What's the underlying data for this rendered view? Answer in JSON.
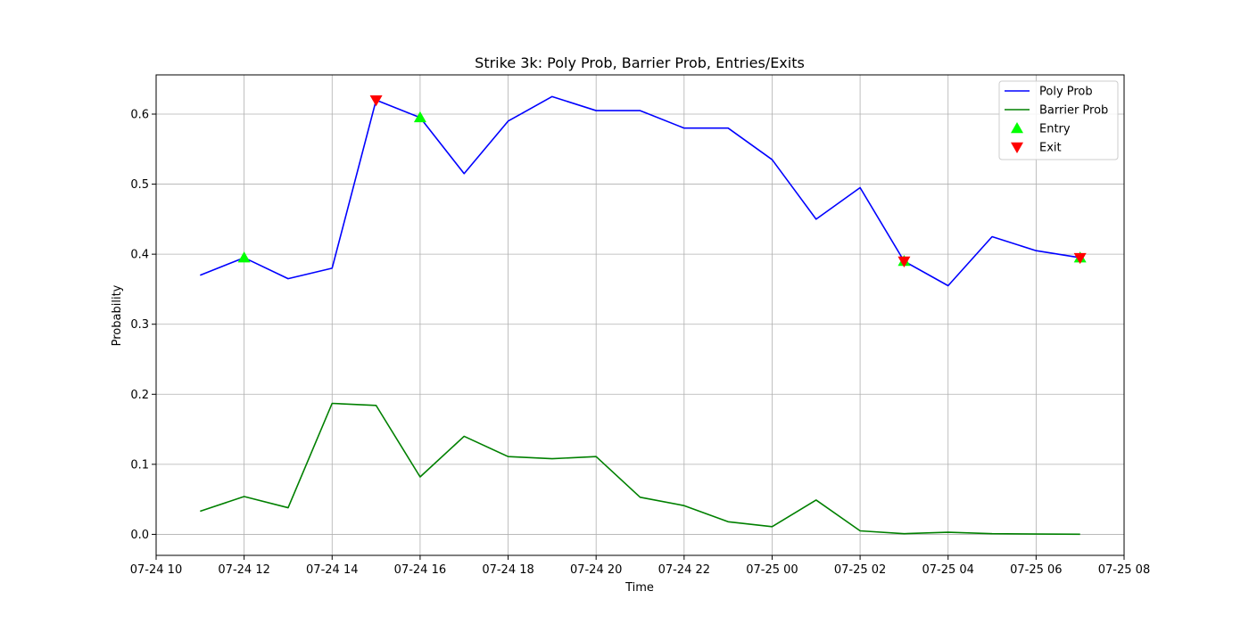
{
  "chart_data": {
    "type": "line",
    "title": "Strike 3k: Poly Prob, Barrier Prob, Entries/Exits",
    "xlabel": "Time",
    "ylabel": "Probability",
    "x_unit": "hour",
    "x_start": "07-24 10",
    "x_ticks": [
      "07-24 10",
      "07-24 12",
      "07-24 14",
      "07-24 16",
      "07-24 18",
      "07-24 20",
      "07-24 22",
      "07-25 00",
      "07-25 02",
      "07-25 04",
      "07-25 06",
      "07-25 08"
    ],
    "x": [
      "07-24 11",
      "07-24 12",
      "07-24 13",
      "07-24 14",
      "07-24 15",
      "07-24 16",
      "07-24 17",
      "07-24 18",
      "07-24 19",
      "07-24 20",
      "07-24 21",
      "07-24 22",
      "07-24 23",
      "07-25 00",
      "07-25 01",
      "07-25 02",
      "07-25 03",
      "07-25 04",
      "07-25 05",
      "07-25 06",
      "07-25 07"
    ],
    "xlim": [
      "07-24 10",
      "07-25 08"
    ],
    "ylim": [
      -0.03,
      0.656
    ],
    "y_ticks": [
      0.0,
      0.1,
      0.2,
      0.3,
      0.4,
      0.5,
      0.6
    ],
    "y_tick_labels": [
      "0.0",
      "0.1",
      "0.2",
      "0.3",
      "0.4",
      "0.5",
      "0.6"
    ],
    "grid": true,
    "legend_position": "top-right",
    "series": [
      {
        "name": "Poly Prob",
        "kind": "line",
        "color": "#0000ff",
        "values": [
          0.37,
          0.395,
          0.365,
          0.38,
          0.62,
          0.595,
          0.515,
          0.59,
          0.625,
          0.605,
          0.605,
          0.58,
          0.58,
          0.535,
          0.45,
          0.495,
          0.39,
          0.355,
          0.425,
          0.405,
          0.395
        ]
      },
      {
        "name": "Barrier Prob",
        "kind": "line",
        "color": "#008000",
        "values": [
          0.033,
          0.054,
          0.038,
          0.187,
          0.184,
          0.082,
          0.14,
          0.111,
          0.108,
          0.111,
          0.053,
          0.041,
          0.018,
          0.011,
          0.049,
          0.005,
          0.001,
          0.003,
          0.001,
          0.0005,
          0.0002
        ]
      },
      {
        "name": "Entry",
        "kind": "scatter",
        "marker": "triangle-up",
        "color": "#00ff00",
        "x": [
          "07-24 12",
          "07-24 16",
          "07-25 03",
          "07-25 07"
        ],
        "values": [
          0.395,
          0.595,
          0.39,
          0.395
        ]
      },
      {
        "name": "Exit",
        "kind": "scatter",
        "marker": "triangle-down",
        "color": "#ff0000",
        "x": [
          "07-24 15",
          "07-25 03",
          "07-25 07"
        ],
        "values": [
          0.62,
          0.39,
          0.395
        ]
      }
    ]
  }
}
